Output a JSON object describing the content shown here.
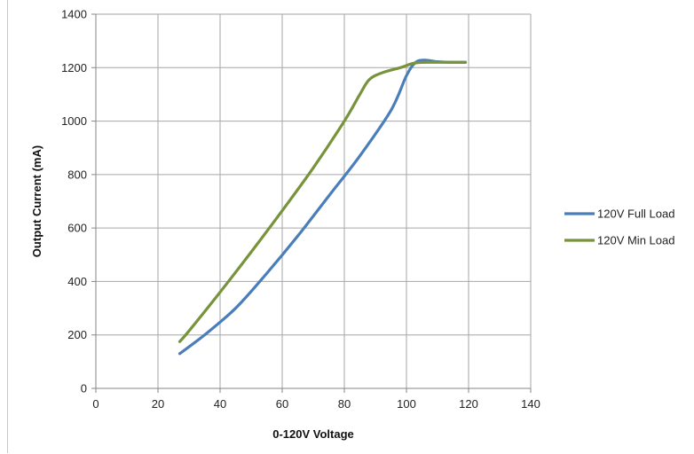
{
  "chart_data": {
    "type": "line",
    "title": "",
    "xlabel": "0-120V Voltage",
    "ylabel": "Output Current (mA)",
    "xlim": [
      0,
      140
    ],
    "ylim": [
      0,
      1400
    ],
    "xticks": [
      0,
      20,
      40,
      60,
      80,
      100,
      120,
      140
    ],
    "yticks": [
      0,
      200,
      400,
      600,
      800,
      1000,
      1200,
      1400
    ],
    "grid": true,
    "legend_position": "right",
    "series": [
      {
        "name": "120V Full Load",
        "color": "#4a7ebb",
        "x": [
          27,
          35,
          45,
          55,
          65,
          75,
          85,
          95,
          100,
          103,
          106,
          110,
          115,
          119
        ],
        "y": [
          130,
          200,
          300,
          430,
          570,
          720,
          870,
          1040,
          1170,
          1220,
          1228,
          1222,
          1220,
          1220
        ]
      },
      {
        "name": "120V Min Load",
        "color": "#77933c",
        "x": [
          27,
          30,
          40,
          50,
          60,
          70,
          80,
          85,
          88,
          92,
          98,
          103,
          110,
          119
        ],
        "y": [
          175,
          215,
          360,
          510,
          665,
          825,
          1000,
          1100,
          1155,
          1180,
          1200,
          1218,
          1220,
          1220
        ]
      }
    ]
  }
}
